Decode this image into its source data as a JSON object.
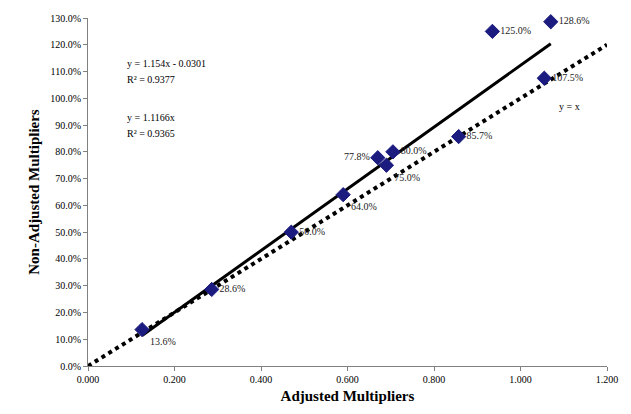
{
  "chart_data": {
    "type": "scatter",
    "xlabel": "Adjusted Multipliers",
    "ylabel": "Non-Adjusted Multipliers",
    "x": [
      0.125,
      0.286,
      0.47,
      0.59,
      0.67,
      0.69,
      0.705,
      0.857,
      0.935,
      1.055,
      1.07
    ],
    "values": [
      13.6,
      28.6,
      50.0,
      64.0,
      77.8,
      75.0,
      80.0,
      85.7,
      125.0,
      107.5,
      128.6
    ],
    "value_labels": [
      "13.6%",
      "28.6%",
      "50.0%",
      "64.0%",
      "77.8%",
      "75.0%",
      "80.0%",
      "85.7%",
      "125.0%",
      "107.5%",
      "128.6%"
    ],
    "data_labels": true,
    "color": "#1c1c80",
    "marker": "diamond",
    "series": [
      {
        "type": "line",
        "color": "#000000",
        "line_style": "solid",
        "x": [
          0.125,
          1.07
        ],
        "values": [
          11.4,
          120.4
        ]
      },
      {
        "type": "line",
        "color": "#000000",
        "line_style": "dotted",
        "x": [
          0.0,
          1.2
        ],
        "values": [
          0.0,
          120.0
        ]
      }
    ],
    "annotations": [
      "y = 1.154x - 0.0301",
      "R² = 0.9377",
      "y = 1.1166x",
      "R² = 0.9365",
      "y = x"
    ],
    "xlim": [
      0,
      1.2
    ],
    "ylim": [
      0,
      130
    ],
    "xticks": [
      {
        "value": 0,
        "label": "0.000"
      },
      {
        "value": 0.2,
        "label": "0.200"
      },
      {
        "value": 0.4,
        "label": "0.400"
      },
      {
        "value": 0.6,
        "label": "0.600"
      },
      {
        "value": 0.8,
        "label": "0.800"
      },
      {
        "value": 1.0,
        "label": "1.000"
      },
      {
        "value": 1.2,
        "label": "1.200"
      }
    ],
    "yticks": [
      {
        "value": 0,
        "label": "0.0%"
      },
      {
        "value": 10,
        "label": "10.0%"
      },
      {
        "value": 20,
        "label": "20.0%"
      },
      {
        "value": 30,
        "label": "30.0%"
      },
      {
        "value": 40,
        "label": "40.0%"
      },
      {
        "value": 50,
        "label": "50.0%"
      },
      {
        "value": 60,
        "label": "60.0%"
      },
      {
        "value": 70,
        "label": "70.0%"
      },
      {
        "value": 80,
        "label": "80.0%"
      },
      {
        "value": 90,
        "label": "90.0%"
      },
      {
        "value": 100,
        "label": "100.0%"
      },
      {
        "value": 110,
        "label": "110.0%"
      },
      {
        "value": 120,
        "label": "120.0%"
      },
      {
        "value": 130,
        "label": "130.0%"
      }
    ],
    "grid": false
  }
}
